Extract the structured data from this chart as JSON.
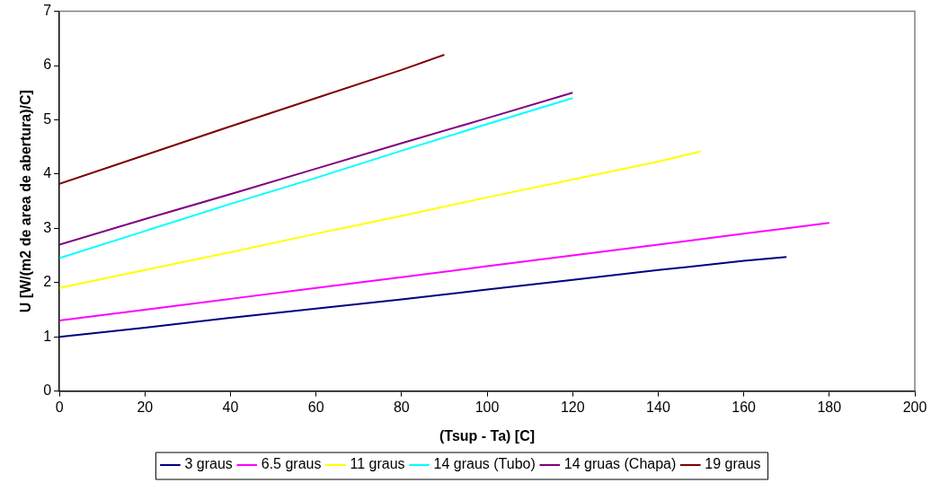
{
  "chart_data": {
    "type": "line",
    "xlabel": "(Tsup - Ta) [C]",
    "ylabel": "U [W/(m2 de area de abertura)/C]",
    "xlim": [
      0,
      200
    ],
    "xticks": [
      0,
      20,
      40,
      60,
      80,
      100,
      120,
      140,
      160,
      180,
      200
    ],
    "ylim": [
      0,
      7
    ],
    "yticks": [
      0,
      1,
      2,
      3,
      4,
      5,
      6,
      7
    ],
    "grid": false,
    "legend": "bottom",
    "marker": "none",
    "line_style": "solid",
    "series": [
      {
        "name": "3 graus",
        "color": "#000080",
        "x": [
          0,
          20,
          40,
          60,
          80,
          100,
          120,
          140,
          160,
          170
        ],
        "values": [
          1.0,
          1.17,
          1.35,
          1.52,
          1.69,
          1.87,
          2.05,
          2.23,
          2.4,
          2.47
        ]
      },
      {
        "name": "6.5 graus",
        "color": "#ff00ff",
        "x": [
          0,
          20,
          40,
          60,
          80,
          100,
          120,
          140,
          160,
          180
        ],
        "values": [
          1.3,
          1.5,
          1.7,
          1.9,
          2.1,
          2.3,
          2.5,
          2.7,
          2.9,
          3.1
        ]
      },
      {
        "name": "11 graus",
        "color": "#ffff00",
        "x": [
          0,
          20,
          40,
          60,
          80,
          100,
          120,
          140,
          150
        ],
        "values": [
          1.9,
          2.23,
          2.56,
          2.9,
          3.23,
          3.57,
          3.9,
          4.23,
          4.42
        ]
      },
      {
        "name": "14 graus (Tubo)",
        "color": "#00ffff",
        "x": [
          0,
          20,
          40,
          60,
          80,
          100,
          120
        ],
        "values": [
          2.45,
          2.95,
          3.45,
          3.93,
          4.43,
          4.92,
          5.4
        ]
      },
      {
        "name": "14 gruas (Chapa)",
        "color": "#800080",
        "x": [
          0,
          20,
          40,
          60,
          80,
          100,
          120
        ],
        "values": [
          2.7,
          3.17,
          3.63,
          4.1,
          4.57,
          5.03,
          5.5
        ]
      },
      {
        "name": "19 graus",
        "color": "#800000",
        "x": [
          0,
          20,
          40,
          60,
          80,
          90
        ],
        "values": [
          3.82,
          4.35,
          4.88,
          5.4,
          5.92,
          6.2
        ]
      }
    ]
  }
}
